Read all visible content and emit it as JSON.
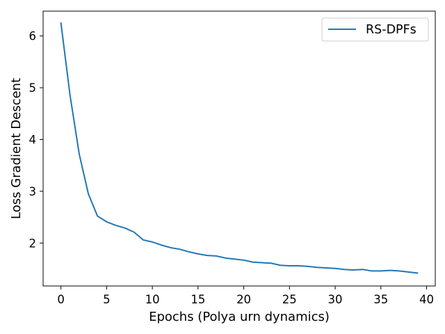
{
  "chart_data": {
    "type": "line",
    "title": "",
    "xlabel": "Epochs (Polya urn dynamics)",
    "ylabel": "Loss Gradient Descent",
    "xlim": [
      -1.95,
      40.95
    ],
    "ylim": [
      1.17,
      6.48
    ],
    "xticks": [
      0,
      5,
      10,
      15,
      20,
      25,
      30,
      35,
      40
    ],
    "xtick_labels": [
      "0",
      "5",
      "10",
      "15",
      "20",
      "25",
      "30",
      "35",
      "40"
    ],
    "yticks": [
      2,
      3,
      4,
      5,
      6
    ],
    "ytick_labels": [
      "2",
      "3",
      "4",
      "5",
      "6"
    ],
    "grid": false,
    "legend_position": "top-right",
    "series": [
      {
        "name": "RS-DPFs",
        "color": "#1f77b4",
        "x": [
          0,
          1,
          2,
          3,
          4,
          5,
          6,
          7,
          8,
          9,
          10,
          11,
          12,
          13,
          14,
          15,
          16,
          17,
          18,
          19,
          20,
          21,
          22,
          23,
          24,
          25,
          26,
          27,
          28,
          29,
          30,
          31,
          32,
          33,
          34,
          35,
          36,
          37,
          38,
          39
        ],
        "y": [
          6.25,
          4.85,
          3.72,
          2.95,
          2.52,
          2.41,
          2.34,
          2.29,
          2.21,
          2.06,
          2.02,
          1.96,
          1.91,
          1.88,
          1.83,
          1.79,
          1.76,
          1.75,
          1.71,
          1.69,
          1.67,
          1.63,
          1.62,
          1.61,
          1.57,
          1.56,
          1.56,
          1.55,
          1.53,
          1.52,
          1.51,
          1.49,
          1.48,
          1.49,
          1.46,
          1.46,
          1.47,
          1.46,
          1.44,
          1.42
        ]
      }
    ]
  }
}
